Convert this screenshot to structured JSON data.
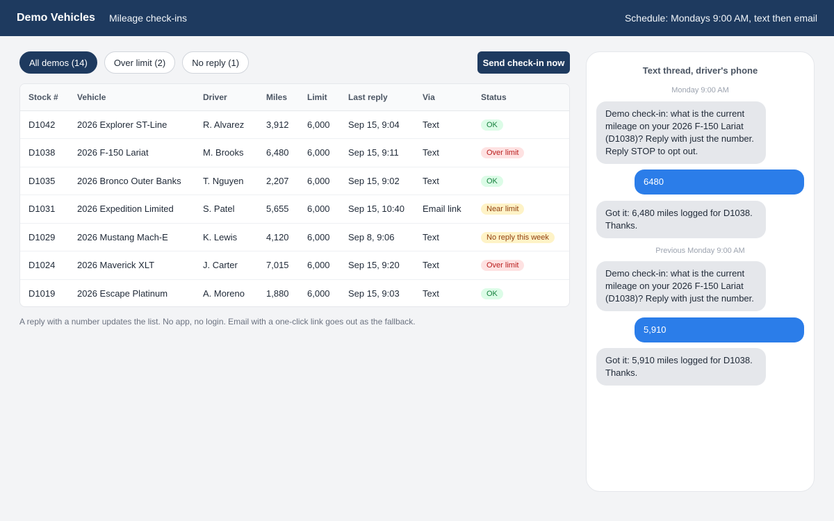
{
  "header": {
    "brand": "Demo Vehicles",
    "subtitle": "Mileage check-ins",
    "schedule": "Schedule: Mondays 9:00 AM, text then email"
  },
  "filters": [
    {
      "label": "All demos (14)",
      "active": true
    },
    {
      "label": "Over limit (2)",
      "active": false
    },
    {
      "label": "No reply (1)",
      "active": false
    }
  ],
  "send_button": "Send check-in now",
  "table": {
    "columns": [
      "Stock #",
      "Vehicle",
      "Driver",
      "Miles",
      "Limit",
      "Last reply",
      "Via",
      "Status"
    ],
    "rows": [
      {
        "stock": "D1042",
        "vehicle": "2026 Explorer ST-Line",
        "driver": "R. Alvarez",
        "miles": "3,912",
        "limit": "6,000",
        "last_reply": "Sep 15, 9:04",
        "via": "Text",
        "status": "OK",
        "status_kind": "ok"
      },
      {
        "stock": "D1038",
        "vehicle": "2026 F-150 Lariat",
        "driver": "M. Brooks",
        "miles": "6,480",
        "limit": "6,000",
        "last_reply": "Sep 15, 9:11",
        "via": "Text",
        "status": "Over limit",
        "status_kind": "over"
      },
      {
        "stock": "D1035",
        "vehicle": "2026 Bronco Outer Banks",
        "driver": "T. Nguyen",
        "miles": "2,207",
        "limit": "6,000",
        "last_reply": "Sep 15, 9:02",
        "via": "Text",
        "status": "OK",
        "status_kind": "ok"
      },
      {
        "stock": "D1031",
        "vehicle": "2026 Expedition Limited",
        "driver": "S. Patel",
        "miles": "5,655",
        "limit": "6,000",
        "last_reply": "Sep 15, 10:40",
        "via": "Email link",
        "status": "Near limit",
        "status_kind": "near"
      },
      {
        "stock": "D1029",
        "vehicle": "2026 Mustang Mach-E",
        "driver": "K. Lewis",
        "miles": "4,120",
        "limit": "6,000",
        "last_reply": "Sep 8, 9:06",
        "via": "Text",
        "status": "No reply this week",
        "status_kind": "noreply"
      },
      {
        "stock": "D1024",
        "vehicle": "2026 Maverick XLT",
        "driver": "J. Carter",
        "miles": "7,015",
        "limit": "6,000",
        "last_reply": "Sep 15, 9:20",
        "via": "Text",
        "status": "Over limit",
        "status_kind": "over"
      },
      {
        "stock": "D1019",
        "vehicle": "2026 Escape Platinum",
        "driver": "A. Moreno",
        "miles": "1,880",
        "limit": "6,000",
        "last_reply": "Sep 15, 9:03",
        "via": "Text",
        "status": "OK",
        "status_kind": "ok"
      }
    ]
  },
  "footnote": "A reply with a number updates the list. No app, no login. Email with a one-click link goes out as the fallback.",
  "thread": {
    "title": "Text thread, driver's phone",
    "ts1": "Monday 9:00 AM",
    "msg1": "Demo check-in: what is the current mileage on your 2026 F-150 Lariat (D1038)? Reply with just the number. Reply STOP to opt out.",
    "reply1": "6480",
    "conf1": "Got it: 6,480 miles logged for D1038. Thanks.",
    "ts2": "Previous Monday 9:00 AM",
    "msg2": "Demo check-in: what is the current mileage on your 2026 F-150 Lariat (D1038)? Reply with just the number.",
    "reply2": "5,910",
    "conf2": "Got it: 5,910 miles logged for D1038. Thanks."
  }
}
